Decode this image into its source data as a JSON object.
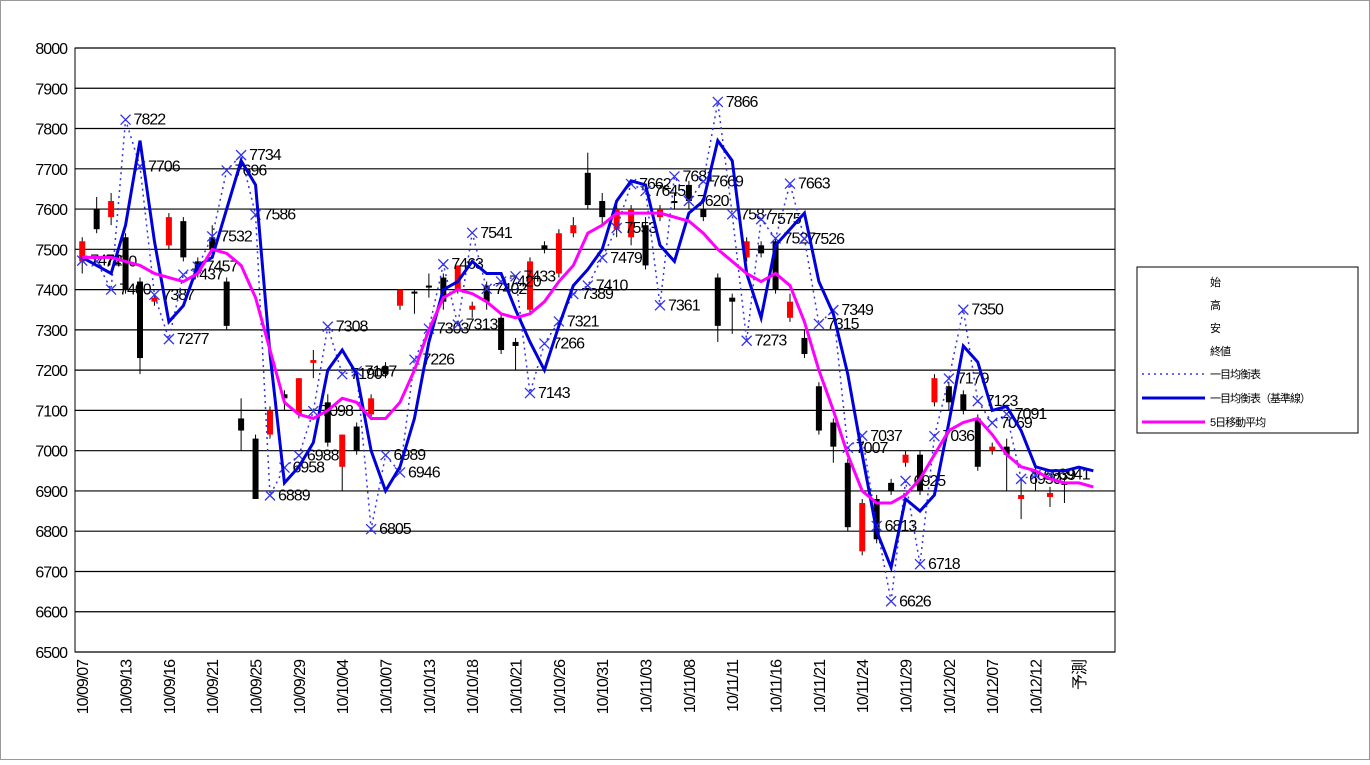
{
  "chart_data": {
    "type": "candlestick",
    "categories": [
      "10/09/07",
      null,
      null,
      "10/09/13",
      null,
      null,
      "10/09/16",
      null,
      null,
      "10/09/21",
      null,
      null,
      "10/09/25",
      null,
      null,
      "10/09/29",
      null,
      null,
      "10/10/04",
      null,
      null,
      "10/10/07",
      null,
      null,
      "10/10/13",
      null,
      null,
      "10/10/18",
      null,
      null,
      "10/10/21",
      null,
      null,
      "10/10/26",
      null,
      null,
      "10/10/31",
      null,
      null,
      "10/11/03",
      null,
      null,
      "10/11/08",
      null,
      null,
      "10/11/11",
      null,
      null,
      "10/11/16",
      null,
      null,
      "10/11/21",
      null,
      null,
      "10/11/24",
      null,
      null,
      "10/11/29",
      null,
      null,
      "10/12/02",
      null,
      null,
      "10/12/07",
      null,
      null,
      "10/12/12",
      null,
      null,
      "予測",
      null,
      null
    ],
    "candle_names": [
      "始",
      "高",
      "安",
      "終値"
    ],
    "open": [
      7470,
      7600,
      7580,
      7530,
      7420,
      7370,
      7510,
      7570,
      7470,
      7530,
      7420,
      7080,
      7030,
      7040,
      7140,
      7090,
      7218,
      7120,
      6960,
      7060,
      7090,
      7210,
      7360,
      7395,
      7410,
      7430,
      7400,
      7350,
      7410,
      7330,
      7270,
      7350,
      7510,
      7440,
      7540,
      7690,
      7620,
      7550,
      7530,
      7560,
      7580,
      7620,
      7660,
      7600,
      7430,
      7380,
      7480,
      7510,
      7520,
      7330,
      7280,
      7160,
      7070,
      6970,
      6750,
      6880,
      6920,
      6970,
      6990,
      7120,
      7160,
      7140,
      7080,
      7000,
      7010,
      6880,
      6950,
      6885,
      6920,
      null,
      null,
      null
    ],
    "high": [
      7530,
      7630,
      7640,
      7540,
      7430,
      7390,
      7590,
      7580,
      7480,
      7560,
      7430,
      7130,
      7040,
      7110,
      7150,
      7180,
      7250,
      7140,
      7040,
      7070,
      7140,
      7220,
      7400,
      7400,
      7440,
      7440,
      7460,
      7370,
      7420,
      7340,
      7280,
      7480,
      7520,
      7550,
      7580,
      7740,
      7640,
      7620,
      7610,
      7580,
      7610,
      7640,
      7670,
      7620,
      7440,
      7390,
      7530,
      7520,
      7530,
      7390,
      7300,
      7170,
      7080,
      6980,
      6880,
      6890,
      6930,
      7000,
      7000,
      7190,
      7170,
      7150,
      7090,
      7020,
      7030,
      6930,
      6960,
      6910,
      6930,
      null,
      null,
      null
    ],
    "low": [
      7440,
      7540,
      7560,
      7390,
      7190,
      7360,
      7500,
      7470,
      7430,
      7490,
      7300,
      7000,
      6880,
      7030,
      7100,
      7080,
      7180,
      7010,
      6900,
      6990,
      7080,
      7180,
      7350,
      7340,
      7380,
      7350,
      7390,
      7330,
      7350,
      7240,
      7200,
      7340,
      7490,
      7430,
      7530,
      7600,
      7560,
      7530,
      7510,
      7450,
      7570,
      7600,
      7600,
      7570,
      7270,
      7290,
      7470,
      7480,
      7390,
      7320,
      7230,
      7040,
      6970,
      6800,
      6740,
      6770,
      6890,
      6960,
      6890,
      7110,
      7100,
      7090,
      6950,
      6990,
      6900,
      6830,
      6900,
      6860,
      6870,
      null,
      null,
      null
    ],
    "close": [
      7520,
      7550,
      7620,
      7400,
      7230,
      7380,
      7580,
      7480,
      7440,
      7500,
      7310,
      7050,
      6880,
      7100,
      7130,
      7180,
      7225,
      7020,
      7040,
      7000,
      7130,
      7190,
      7400,
      7390,
      7405,
      7370,
      7460,
      7360,
      7370,
      7250,
      7260,
      7470,
      7500,
      7540,
      7560,
      7610,
      7580,
      7600,
      7600,
      7460,
      7600,
      7615,
      7620,
      7580,
      7310,
      7370,
      7520,
      7490,
      7400,
      7370,
      7240,
      7050,
      7010,
      6810,
      6870,
      6780,
      6900,
      6990,
      6900,
      7180,
      7120,
      7100,
      6960,
      7010,
      6990,
      6890,
      6945,
      6895,
      6915,
      null,
      null,
      null
    ],
    "up_color": "#ff0000",
    "down_color": "#000000",
    "series": [
      {
        "name": "一目均衡表",
        "color": "#3333ee",
        "style": "dotted",
        "values": [
          7472,
          7470,
          7400,
          7822,
          7706,
          7387,
          7277,
          7437,
          7457,
          7532,
          7696,
          7734,
          7586,
          6889,
          6958,
          6988,
          7098,
          7308,
          7190,
          7197,
          6805,
          6989,
          6946,
          7226,
          7303,
          7463,
          7313,
          7541,
          7402,
          7420,
          7433,
          7143,
          7266,
          7321,
          7389,
          7410,
          7479,
          7553,
          7662,
          7645,
          7361,
          7681,
          7620,
          7669,
          7866,
          7587,
          7273,
          7575,
          7527,
          7663,
          7526,
          7315,
          7349,
          7007,
          7037,
          6813,
          6626,
          6925,
          6718,
          7036,
          7179,
          7350,
          7123,
          7069,
          7091,
          6930,
          6939,
          6941,
          null,
          null,
          null,
          null
        ]
      },
      {
        "name": "一目均衡表（基準線）",
        "color": "#0000dd",
        "style": "solid",
        "values": [
          7480,
          7460,
          7440,
          7560,
          7770,
          7520,
          7320,
          7360,
          7460,
          7480,
          7600,
          7720,
          7660,
          7240,
          6920,
          6960,
          7020,
          7200,
          7250,
          7190,
          7000,
          6900,
          6960,
          7080,
          7270,
          7400,
          7420,
          7470,
          7440,
          7440,
          7350,
          7270,
          7200,
          7310,
          7410,
          7450,
          7500,
          7620,
          7670,
          7660,
          7510,
          7470,
          7590,
          7620,
          7770,
          7720,
          7440,
          7330,
          7510,
          7550,
          7590,
          7420,
          7340,
          7190,
          6990,
          6800,
          6710,
          6880,
          6850,
          6890,
          7070,
          7260,
          7220,
          7100,
          7110,
          7050,
          6960,
          6950,
          6950,
          6959,
          6950,
          null
        ]
      },
      {
        "name": "5日移動平均",
        "color": "#ff00ff",
        "style": "solid",
        "values": [
          7480,
          7480,
          7480,
          7470,
          7460,
          7440,
          7430,
          7420,
          7440,
          7500,
          7490,
          7460,
          7380,
          7250,
          7120,
          7090,
          7080,
          7100,
          7130,
          7120,
          7080,
          7080,
          7120,
          7200,
          7300,
          7380,
          7400,
          7390,
          7370,
          7340,
          7330,
          7340,
          7370,
          7420,
          7460,
          7540,
          7560,
          7590,
          7590,
          7590,
          7590,
          7580,
          7570,
          7540,
          7500,
          7470,
          7440,
          7420,
          7440,
          7410,
          7320,
          7200,
          7100,
          6990,
          6900,
          6870,
          6870,
          6890,
          6930,
          6990,
          7050,
          7070,
          7080,
          7040,
          6990,
          6960,
          6950,
          6930,
          6920,
          6920,
          6910,
          null
        ]
      }
    ],
    "ylim": [
      6500,
      8000
    ],
    "yticks": [
      6500,
      6600,
      6700,
      6800,
      6900,
      7000,
      7100,
      7200,
      7300,
      7400,
      7500,
      7600,
      7700,
      7800,
      7900,
      8000
    ],
    "grid": true
  }
}
